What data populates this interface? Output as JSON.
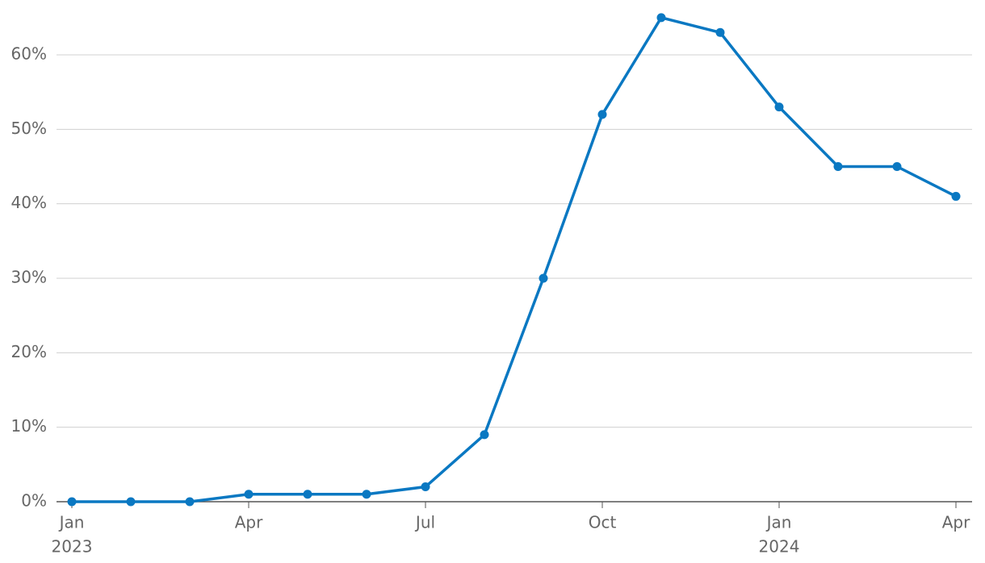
{
  "chart_data": {
    "type": "line",
    "x": [
      "2023-01",
      "2023-02",
      "2023-03",
      "2023-04",
      "2023-05",
      "2023-06",
      "2023-07",
      "2023-08",
      "2023-09",
      "2023-10",
      "2023-11",
      "2023-12",
      "2024-01",
      "2024-02",
      "2024-03",
      "2024-04"
    ],
    "series": [
      {
        "color": "#0a78c2",
        "values": [
          0,
          0,
          0,
          1,
          1,
          1,
          2,
          9,
          30,
          52,
          65,
          63,
          53,
          45,
          45,
          41
        ]
      }
    ],
    "xlim": [
      "2023-01",
      "2024-04"
    ],
    "xticks": [
      {
        "value": "2023-01",
        "label": "Jan",
        "year": "2023"
      },
      {
        "value": "2023-04",
        "label": "Apr"
      },
      {
        "value": "2023-07",
        "label": "Jul"
      },
      {
        "value": "2023-10",
        "label": "Oct"
      },
      {
        "value": "2024-01",
        "label": "Jan",
        "year": "2024"
      },
      {
        "value": "2024-04",
        "label": "Apr"
      }
    ],
    "ylim": [
      0,
      67
    ],
    "yticks": [
      {
        "value": 0,
        "label": "0%"
      },
      {
        "value": 10,
        "label": "10%"
      },
      {
        "value": 20,
        "label": "20%"
      },
      {
        "value": 30,
        "label": "30%"
      },
      {
        "value": 40,
        "label": "40%"
      },
      {
        "value": 50,
        "label": "50%"
      },
      {
        "value": 60,
        "label": "60%"
      }
    ],
    "grid": true
  }
}
